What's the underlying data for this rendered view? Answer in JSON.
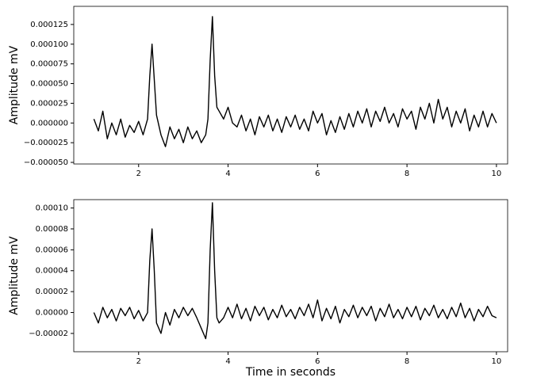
{
  "chart_data": [
    {
      "type": "line",
      "ylabel": "Amplitude mV",
      "color": "#000000",
      "xlim": [
        0.55,
        10.25
      ],
      "xticks": [
        2,
        4,
        6,
        8,
        10
      ],
      "ylim": [
        -5.2e-05,
        0.000148
      ],
      "yticks": [
        {
          "value": -5e-05,
          "label": "−0.000050"
        },
        {
          "value": -2.5e-05,
          "label": "−0.000025"
        },
        {
          "value": 0,
          "label": "0.000000"
        },
        {
          "value": 2.5e-05,
          "label": "0.000025"
        },
        {
          "value": 5e-05,
          "label": "0.000050"
        },
        {
          "value": 7.5e-05,
          "label": "0.000075"
        },
        {
          "value": 0.0001,
          "label": "0.000100"
        },
        {
          "value": 0.000125,
          "label": "0.000125"
        }
      ],
      "x": [
        1.0,
        1.1,
        1.2,
        1.3,
        1.4,
        1.5,
        1.6,
        1.7,
        1.8,
        1.9,
        2.0,
        2.1,
        2.2,
        2.25,
        2.3,
        2.35,
        2.4,
        2.5,
        2.6,
        2.7,
        2.8,
        2.9,
        3.0,
        3.1,
        3.2,
        3.3,
        3.4,
        3.5,
        3.55,
        3.6,
        3.65,
        3.7,
        3.75,
        3.8,
        3.9,
        4.0,
        4.1,
        4.2,
        4.3,
        4.4,
        4.5,
        4.6,
        4.7,
        4.8,
        4.9,
        5.0,
        5.1,
        5.2,
        5.3,
        5.4,
        5.5,
        5.6,
        5.7,
        5.8,
        5.9,
        6.0,
        6.1,
        6.2,
        6.3,
        6.4,
        6.5,
        6.6,
        6.7,
        6.8,
        6.9,
        7.0,
        7.1,
        7.2,
        7.3,
        7.4,
        7.5,
        7.6,
        7.7,
        7.8,
        7.9,
        8.0,
        8.1,
        8.2,
        8.3,
        8.4,
        8.5,
        8.6,
        8.7,
        8.8,
        8.9,
        9.0,
        9.1,
        9.2,
        9.3,
        9.4,
        9.5,
        9.6,
        9.7,
        9.8,
        9.9,
        10.0
      ],
      "values": [
        5e-06,
        -1e-05,
        1.5e-05,
        -2e-05,
        0,
        -1.5e-05,
        5e-06,
        -1.8e-05,
        -3e-06,
        -1.2e-05,
        2e-06,
        -1.5e-05,
        5e-06,
        6e-05,
        0.0001,
        5.5e-05,
        1e-05,
        -1.5e-05,
        -3e-05,
        -5e-06,
        -2e-05,
        -8e-06,
        -2.5e-05,
        -5e-06,
        -2e-05,
        -1e-05,
        -2.5e-05,
        -1.5e-05,
        5e-06,
        8e-05,
        0.000135,
        6e-05,
        2e-05,
        1.5e-05,
        5e-06,
        2e-05,
        0,
        -5e-06,
        1e-05,
        -1e-05,
        5e-06,
        -1.5e-05,
        8e-06,
        -5e-06,
        1e-05,
        -1e-05,
        5e-06,
        -1.2e-05,
        8e-06,
        -5e-06,
        1e-05,
        -8e-06,
        5e-06,
        -1e-05,
        1.5e-05,
        0,
        1.2e-05,
        -1.5e-05,
        3e-06,
        -1.2e-05,
        8e-06,
        -8e-06,
        1.2e-05,
        -5e-06,
        1.5e-05,
        0,
        1.8e-05,
        -5e-06,
        1.5e-05,
        2e-06,
        2e-05,
        0,
        1.2e-05,
        -5e-06,
        1.8e-05,
        5e-06,
        1.5e-05,
        -8e-06,
        2e-05,
        5e-06,
        2.5e-05,
        0,
        3e-05,
        5e-06,
        2e-05,
        -5e-06,
        1.5e-05,
        0,
        1.8e-05,
        -1e-05,
        1e-05,
        -5e-06,
        1.5e-05,
        -5e-06,
        1.2e-05,
        0
      ]
    },
    {
      "type": "line",
      "ylabel": "Amplitude mV",
      "xlabel": "Time in seconds",
      "color": "#000000",
      "xlim": [
        0.55,
        10.25
      ],
      "xticks": [
        2,
        4,
        6,
        8,
        10
      ],
      "ylim": [
        -3.75e-05,
        0.000108
      ],
      "yticks": [
        {
          "value": -2e-05,
          "label": "−0.00002"
        },
        {
          "value": 0,
          "label": "0.00000"
        },
        {
          "value": 2e-05,
          "label": "0.00002"
        },
        {
          "value": 4e-05,
          "label": "0.00004"
        },
        {
          "value": 6e-05,
          "label": "0.00006"
        },
        {
          "value": 8e-05,
          "label": "0.00008"
        },
        {
          "value": 0.0001,
          "label": "0.00010"
        }
      ],
      "x": [
        1.0,
        1.1,
        1.2,
        1.3,
        1.4,
        1.5,
        1.6,
        1.7,
        1.8,
        1.9,
        2.0,
        2.1,
        2.2,
        2.25,
        2.3,
        2.35,
        2.4,
        2.5,
        2.6,
        2.7,
        2.8,
        2.9,
        3.0,
        3.1,
        3.2,
        3.3,
        3.4,
        3.5,
        3.55,
        3.6,
        3.65,
        3.7,
        3.75,
        3.8,
        3.9,
        4.0,
        4.1,
        4.2,
        4.3,
        4.4,
        4.5,
        4.6,
        4.7,
        4.8,
        4.9,
        5.0,
        5.1,
        5.2,
        5.3,
        5.4,
        5.5,
        5.6,
        5.7,
        5.8,
        5.9,
        6.0,
        6.1,
        6.2,
        6.3,
        6.4,
        6.5,
        6.6,
        6.7,
        6.8,
        6.9,
        7.0,
        7.1,
        7.2,
        7.3,
        7.4,
        7.5,
        7.6,
        7.7,
        7.8,
        7.9,
        8.0,
        8.1,
        8.2,
        8.3,
        8.4,
        8.5,
        8.6,
        8.7,
        8.8,
        8.9,
        9.0,
        9.1,
        9.2,
        9.3,
        9.4,
        9.5,
        9.6,
        9.7,
        9.8,
        9.9,
        10.0
      ],
      "values": [
        0,
        -1e-05,
        5e-06,
        -5e-06,
        3e-06,
        -8e-06,
        4e-06,
        -3e-06,
        5e-06,
        -6e-06,
        2e-06,
        -8e-06,
        0,
        5e-05,
        8e-05,
        4e-05,
        -1e-05,
        -2e-05,
        0,
        -1.2e-05,
        3e-06,
        -5e-06,
        5e-06,
        -3e-06,
        4e-06,
        -5e-06,
        -1.5e-05,
        -2.5e-05,
        -1e-05,
        6e-05,
        0.000105,
        4e-05,
        -5e-06,
        -1e-05,
        -5e-06,
        5e-06,
        -5e-06,
        8e-06,
        -6e-06,
        4e-06,
        -8e-06,
        6e-06,
        -3e-06,
        5e-06,
        -7e-06,
        3e-06,
        -5e-06,
        7e-06,
        -4e-06,
        3e-06,
        -6e-06,
        5e-06,
        -3e-06,
        8e-06,
        -5e-06,
        1.2e-05,
        -8e-06,
        4e-06,
        -6e-06,
        6e-06,
        -1e-05,
        3e-06,
        -4e-06,
        7e-06,
        -5e-06,
        5e-06,
        -3e-06,
        6e-06,
        -8e-06,
        4e-06,
        -4e-06,
        8e-06,
        -5e-06,
        3e-06,
        -6e-06,
        5e-06,
        -4e-06,
        6e-06,
        -7e-06,
        4e-06,
        -3e-06,
        7e-06,
        -5e-06,
        3e-06,
        -6e-06,
        5e-06,
        -4e-06,
        9e-06,
        -5e-06,
        4e-06,
        -8e-06,
        3e-06,
        -4e-06,
        6e-06,
        -3e-06,
        -5e-06
      ]
    }
  ]
}
